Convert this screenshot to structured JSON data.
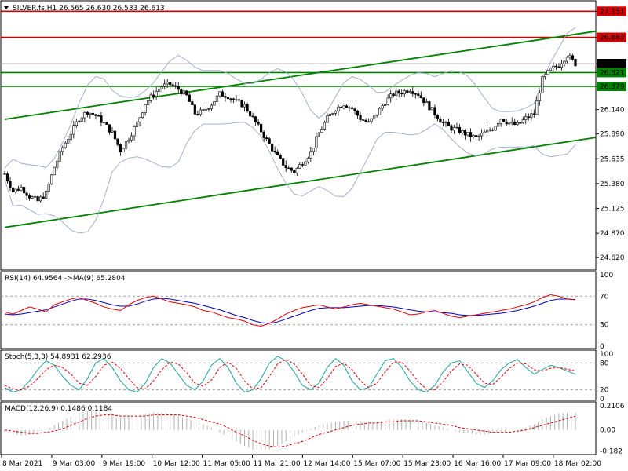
{
  "chart_data": {
    "type": "candlestick",
    "main": {
      "title": "SILVER.fs,H1  26.565 26.630 26.533 26.613",
      "ylim": [
        24.5,
        27.25
      ],
      "yticks": [
        "27.151",
        "26.883",
        "26.613",
        "26.521",
        "26.379",
        "26.140",
        "25.890",
        "25.635",
        "25.380",
        "25.125",
        "24.870",
        "24.620"
      ],
      "price_tick_values": [
        27.151,
        26.883,
        26.613,
        26.521,
        26.379,
        26.14,
        25.89,
        25.635,
        25.38,
        25.125,
        24.87,
        24.62
      ],
      "horizontal_lines": [
        {
          "value": 27.151,
          "label": "27.151",
          "color": "#d00000"
        },
        {
          "value": 26.883,
          "label": "26.883",
          "color": "#d00000"
        },
        {
          "value": 26.521,
          "label": "26.521",
          "color": "#008000"
        },
        {
          "value": 26.379,
          "label": "26.379",
          "color": "#008000"
        }
      ],
      "current_price": {
        "value": 26.613,
        "label": "26.613"
      },
      "close_path": [
        25.48,
        25.3,
        25.34,
        25.25,
        25.2,
        25.28,
        25.55,
        25.75,
        25.9,
        26.05,
        26.12,
        26.08,
        26.0,
        25.9,
        25.72,
        25.85,
        26.0,
        26.2,
        26.3,
        26.38,
        26.4,
        26.35,
        26.28,
        26.1,
        26.12,
        26.2,
        26.3,
        26.28,
        26.22,
        26.18,
        26.05,
        25.92,
        25.78,
        25.65,
        25.55,
        25.5,
        25.6,
        25.7,
        25.9,
        26.05,
        26.15,
        26.2,
        26.15,
        26.05,
        26.0,
        26.1,
        26.22,
        26.3,
        26.32,
        26.35,
        26.3,
        26.2,
        26.1,
        26.0,
        25.95,
        25.92,
        25.88,
        25.85,
        25.9,
        25.95,
        26.05,
        26.0,
        25.98,
        26.05,
        26.1,
        26.45,
        26.55,
        26.6,
        26.7,
        26.613
      ],
      "channel": {
        "color": "#008000",
        "upper": {
          "from": [
            0,
            26.04
          ],
          "to": [
            77,
            27.0
          ]
        },
        "lower": {
          "from": [
            0,
            24.93
          ],
          "to": [
            77,
            25.91
          ]
        }
      },
      "bollinger_color": "#9aa6cc"
    },
    "rsi": {
      "label": "RSI(14) 64.9564  ->MA(9) 65.2804",
      "ylim": [
        0,
        100
      ],
      "yticks": [
        "100",
        "70",
        "30",
        "0"
      ],
      "tick_values": [
        100,
        70,
        30,
        0
      ],
      "levels": [
        70,
        30
      ],
      "rsi_values": [
        48,
        45,
        50,
        55,
        52,
        48,
        58,
        62,
        66,
        68,
        64,
        60,
        55,
        52,
        50,
        58,
        64,
        68,
        70,
        66,
        62,
        60,
        58,
        55,
        50,
        48,
        44,
        40,
        38,
        35,
        30,
        28,
        32,
        38,
        45,
        50,
        54,
        56,
        58,
        55,
        52,
        55,
        58,
        60,
        58,
        56,
        54,
        52,
        48,
        44,
        45,
        48,
        50,
        46,
        42,
        40,
        42,
        44,
        46,
        48,
        50,
        52,
        55,
        58,
        62,
        68,
        72,
        70,
        66,
        65
      ],
      "ma_values": [
        45,
        44,
        45,
        47,
        49,
        51,
        55,
        59,
        63,
        66,
        66,
        64,
        61,
        58,
        56,
        56,
        59,
        63,
        66,
        67,
        66,
        64,
        62,
        60,
        57,
        54,
        51,
        47,
        43,
        40,
        36,
        33,
        32,
        34,
        38,
        42,
        46,
        50,
        53,
        54,
        54,
        54,
        55,
        56,
        57,
        57,
        56,
        55,
        53,
        51,
        49,
        48,
        48,
        47,
        46,
        44,
        43,
        43,
        44,
        45,
        46,
        48,
        50,
        53,
        56,
        60,
        64,
        66,
        66,
        65.28
      ],
      "series_colors": {
        "rsi": "#e00000",
        "ma": "#0000c0"
      }
    },
    "stoch": {
      "label": "Stoch(5,3,3) 54.8931 62.2936",
      "ylim": [
        0,
        100
      ],
      "yticks": [
        "100",
        "80",
        "20",
        "0"
      ],
      "tick_values": [
        100,
        80,
        20,
        0
      ],
      "levels": [
        80,
        20
      ],
      "k_values": [
        25,
        15,
        20,
        40,
        65,
        85,
        75,
        50,
        30,
        20,
        45,
        80,
        90,
        70,
        40,
        20,
        15,
        35,
        70,
        90,
        80,
        55,
        30,
        20,
        40,
        75,
        90,
        70,
        35,
        15,
        20,
        45,
        80,
        95,
        85,
        60,
        30,
        20,
        35,
        70,
        90,
        75,
        40,
        20,
        25,
        55,
        85,
        90,
        70,
        40,
        20,
        15,
        30,
        60,
        80,
        85,
        60,
        35,
        25,
        40,
        65,
        80,
        88,
        70,
        55,
        65,
        75,
        70,
        62,
        54.89
      ],
      "d_values": [
        30,
        22,
        20,
        28,
        45,
        65,
        75,
        70,
        55,
        35,
        30,
        50,
        75,
        82,
        68,
        45,
        25,
        22,
        40,
        65,
        82,
        78,
        58,
        35,
        28,
        42,
        70,
        82,
        68,
        40,
        22,
        25,
        50,
        78,
        88,
        78,
        55,
        30,
        25,
        45,
        72,
        80,
        65,
        40,
        25,
        35,
        60,
        82,
        82,
        62,
        38,
        22,
        20,
        38,
        62,
        78,
        75,
        55,
        35,
        32,
        48,
        68,
        80,
        78,
        65,
        62,
        68,
        70,
        66,
        62.29
      ],
      "series_colors": {
        "k": "#20a0a0",
        "d": "#e00000"
      }
    },
    "macd": {
      "label": "MACD(12,26,9) 0.1486 0.1184",
      "ylim": [
        -0.2,
        0.23
      ],
      "yticks": [
        "0.2106",
        "0.00",
        "-0.182"
      ],
      "tick_values": [
        0.2106,
        0.0,
        -0.182
      ],
      "hist_values": [
        -0.02,
        -0.04,
        -0.05,
        -0.04,
        -0.02,
        0.0,
        0.04,
        0.08,
        0.12,
        0.15,
        0.16,
        0.16,
        0.14,
        0.12,
        0.1,
        0.1,
        0.12,
        0.14,
        0.15,
        0.15,
        0.14,
        0.12,
        0.1,
        0.07,
        0.05,
        0.02,
        -0.02,
        -0.06,
        -0.1,
        -0.14,
        -0.17,
        -0.18,
        -0.17,
        -0.14,
        -0.1,
        -0.06,
        -0.02,
        0.01,
        0.04,
        0.06,
        0.07,
        0.08,
        0.08,
        0.08,
        0.07,
        0.07,
        0.08,
        0.09,
        0.09,
        0.09,
        0.08,
        0.06,
        0.04,
        0.02,
        0.0,
        -0.02,
        -0.03,
        -0.04,
        -0.04,
        -0.03,
        -0.02,
        -0.01,
        0.0,
        0.02,
        0.05,
        0.09,
        0.12,
        0.14,
        0.15,
        0.1486
      ],
      "signal_values": [
        0.0,
        -0.01,
        -0.02,
        -0.03,
        -0.03,
        -0.02,
        -0.01,
        0.01,
        0.04,
        0.07,
        0.1,
        0.12,
        0.13,
        0.13,
        0.12,
        0.12,
        0.12,
        0.12,
        0.13,
        0.13,
        0.13,
        0.13,
        0.12,
        0.11,
        0.09,
        0.07,
        0.05,
        0.02,
        -0.02,
        -0.05,
        -0.09,
        -0.12,
        -0.14,
        -0.15,
        -0.14,
        -0.12,
        -0.1,
        -0.07,
        -0.04,
        -0.02,
        0.0,
        0.02,
        0.04,
        0.05,
        0.06,
        0.06,
        0.07,
        0.07,
        0.08,
        0.08,
        0.08,
        0.07,
        0.06,
        0.05,
        0.04,
        0.02,
        0.01,
        0.0,
        -0.01,
        -0.02,
        -0.02,
        -0.02,
        -0.01,
        0.0,
        0.02,
        0.04,
        0.06,
        0.08,
        0.1,
        0.1184
      ],
      "series_colors": {
        "hist": "#b0b0b0",
        "signal": "#d00000"
      }
    },
    "x_labels": [
      "8 Mar 2021",
      "9 Mar 03:00",
      "9 Mar 19:00",
      "10 Mar 12:00",
      "11 Mar 05:00",
      "11 Mar 21:00",
      "12 Mar 14:00",
      "15 Mar 07:00",
      "15 Mar 23:00",
      "16 Mar 16:00",
      "17 Mar 09:00",
      "18 Mar 02:00"
    ]
  }
}
